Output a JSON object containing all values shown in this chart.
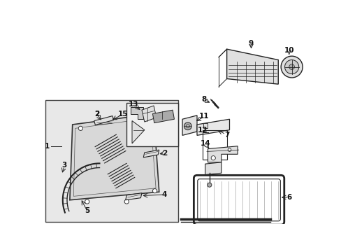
{
  "bg_color": "#ffffff",
  "fig_width": 4.89,
  "fig_height": 3.6,
  "dpi": 100,
  "dark": "#222222",
  "gray": "#cccccc",
  "light_gray": "#e0e0e0",
  "mid_gray": "#aaaaaa"
}
